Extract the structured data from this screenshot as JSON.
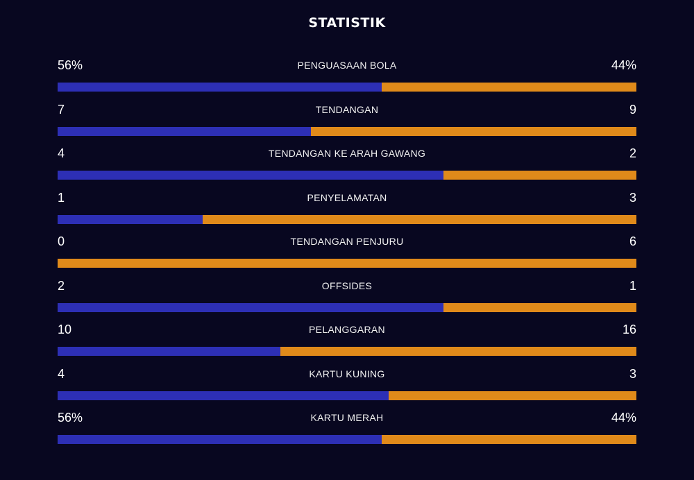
{
  "title": "STATISTIK",
  "colors": {
    "background": "#080720",
    "home": "#2d2fb5",
    "away": "#e08a1a"
  },
  "stats": [
    {
      "label": "PENGUASAAN BOLA",
      "home": "56%",
      "away": "44%",
      "home_share": 0.56
    },
    {
      "label": "TENDANGAN",
      "home": "7",
      "away": "9",
      "home_share": 0.4375
    },
    {
      "label": "TENDANGAN KE ARAH GAWANG",
      "home": "4",
      "away": "2",
      "home_share": 0.6667
    },
    {
      "label": "PENYELAMATAN",
      "home": "1",
      "away": "3",
      "home_share": 0.25
    },
    {
      "label": "TENDANGAN PENJURU",
      "home": "0",
      "away": "6",
      "home_share": 0
    },
    {
      "label": "OFFSIDES",
      "home": "2",
      "away": "1",
      "home_share": 0.6667
    },
    {
      "label": "PELANGGARAN",
      "home": "10",
      "away": "16",
      "home_share": 0.3846
    },
    {
      "label": "KARTU KUNING",
      "home": "4",
      "away": "3",
      "home_share": 0.5714
    },
    {
      "label": "KARTU MERAH",
      "home": "56%",
      "away": "44%",
      "home_share": 0.56
    }
  ]
}
